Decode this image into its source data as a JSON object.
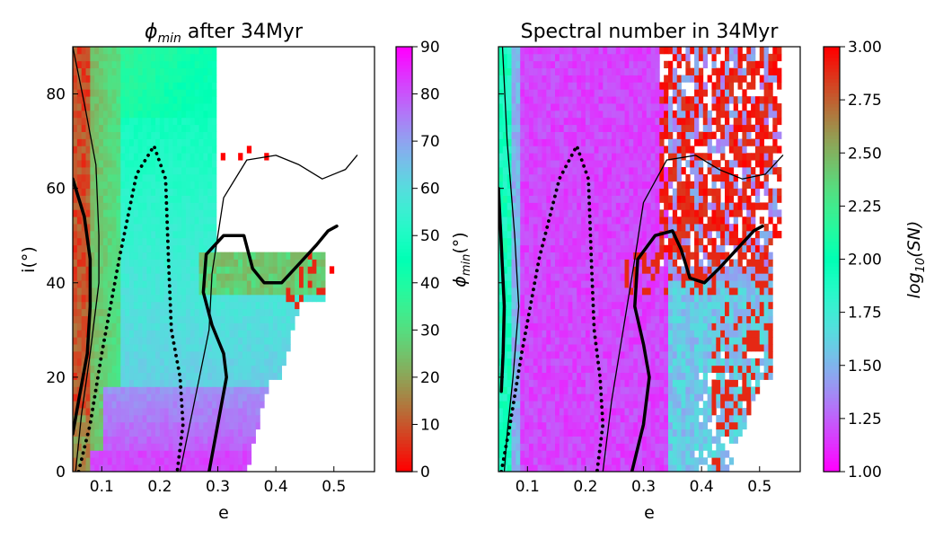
{
  "chart_data": [
    {
      "type": "heatmap",
      "title": "ϕmin after 34Myr",
      "title_main": "ϕ",
      "title_sub": "min",
      "title_rest": " after 34Myr",
      "xlabel": "e",
      "ylabel": "i(°)",
      "xlim": [
        0.05,
        0.57
      ],
      "ylim": [
        0,
        90
      ],
      "x_ticks": [
        "0.1",
        "0.2",
        "0.3",
        "0.4",
        "0.5"
      ],
      "x_tick_values": [
        0.1,
        0.2,
        0.3,
        0.4,
        0.5
      ],
      "y_ticks": [
        "0",
        "20",
        "40",
        "60",
        "80"
      ],
      "y_tick_values": [
        0,
        20,
        40,
        60,
        80
      ],
      "colorbar": {
        "label": "ϕmin(°)",
        "label_main": "ϕ",
        "label_sub": "min",
        "label_rest": "(°)",
        "range": [
          0,
          90
        ],
        "ticks": [
          "0",
          "10",
          "20",
          "30",
          "40",
          "50",
          "60",
          "70",
          "80",
          "90"
        ],
        "tick_values": [
          0,
          10,
          20,
          30,
          40,
          50,
          60,
          70,
          80,
          90
        ],
        "colormap": "rainbow_r",
        "low_color": "#ff0000",
        "high_color": "#8000ff"
      },
      "contours": [
        {
          "style": "solid-thick",
          "points": [
            [
              0.05,
              62
            ],
            [
              0.07,
              54
            ],
            [
              0.08,
              45
            ],
            [
              0.08,
              35
            ],
            [
              0.075,
              25
            ],
            [
              0.06,
              15
            ],
            [
              0.05,
              8
            ]
          ]
        },
        {
          "style": "solid-thin",
          "points": [
            [
              0.05,
              90
            ],
            [
              0.07,
              78
            ],
            [
              0.09,
              65
            ],
            [
              0.095,
              50
            ],
            [
              0.095,
              40
            ],
            [
              0.08,
              25
            ],
            [
              0.065,
              12
            ],
            [
              0.055,
              0
            ]
          ]
        },
        {
          "style": "dotted",
          "points": [
            [
              0.06,
              0
            ],
            [
              0.08,
              10
            ],
            [
              0.1,
              25
            ],
            [
              0.13,
              45
            ],
            [
              0.16,
              63
            ],
            [
              0.19,
              69
            ],
            [
              0.21,
              62
            ],
            [
              0.215,
              45
            ],
            [
              0.22,
              30
            ],
            [
              0.235,
              20
            ],
            [
              0.24,
              10
            ],
            [
              0.23,
              0
            ]
          ]
        },
        {
          "style": "solid-thin",
          "points": [
            [
              0.235,
              0
            ],
            [
              0.26,
              15
            ],
            [
              0.285,
              30
            ],
            [
              0.29,
              42
            ],
            [
              0.31,
              58
            ],
            [
              0.35,
              66
            ],
            [
              0.4,
              67
            ],
            [
              0.44,
              65
            ],
            [
              0.48,
              62
            ],
            [
              0.52,
              64
            ],
            [
              0.54,
              67
            ]
          ]
        },
        {
          "style": "solid-thick",
          "points": [
            [
              0.285,
              0
            ],
            [
              0.3,
              10
            ],
            [
              0.315,
              20
            ],
            [
              0.31,
              25
            ],
            [
              0.29,
              31
            ],
            [
              0.275,
              38
            ],
            [
              0.28,
              46
            ],
            [
              0.31,
              50
            ],
            [
              0.345,
              50
            ],
            [
              0.36,
              43
            ],
            [
              0.38,
              40
            ],
            [
              0.41,
              40
            ],
            [
              0.44,
              44
            ],
            [
              0.47,
              48
            ],
            [
              0.49,
              51
            ],
            [
              0.505,
              52
            ]
          ]
        }
      ]
    },
    {
      "type": "heatmap",
      "title": "Spectral number in 34Myr",
      "xlabel": "e",
      "ylabel": "",
      "xlim": [
        0.05,
        0.57
      ],
      "ylim": [
        0,
        90
      ],
      "x_ticks": [
        "0.1",
        "0.2",
        "0.3",
        "0.4",
        "0.5"
      ],
      "x_tick_values": [
        0.1,
        0.2,
        0.3,
        0.4,
        0.5
      ],
      "colorbar": {
        "label": "log10(SN)",
        "label_main": "log",
        "label_sub": "10",
        "label_rest": "(SN)",
        "range": [
          1.0,
          3.0
        ],
        "ticks": [
          "1.00",
          "1.25",
          "1.50",
          "1.75",
          "2.00",
          "2.25",
          "2.50",
          "2.75",
          "3.00"
        ],
        "tick_values": [
          1.0,
          1.25,
          1.5,
          1.75,
          2.0,
          2.25,
          2.5,
          2.75,
          3.0
        ],
        "colormap": "rainbow",
        "low_color": "#8000ff",
        "high_color": "#ff0000"
      },
      "contours": [
        {
          "style": "solid-thick",
          "points": [
            [
              0.05,
              60
            ],
            [
              0.055,
              48
            ],
            [
              0.06,
              35
            ],
            [
              0.058,
              25
            ],
            [
              0.055,
              17
            ]
          ]
        },
        {
          "style": "solid-thin",
          "points": [
            [
              0.057,
              90
            ],
            [
              0.065,
              70
            ],
            [
              0.078,
              50
            ],
            [
              0.085,
              35
            ],
            [
              0.075,
              20
            ],
            [
              0.065,
              8
            ],
            [
              0.06,
              0
            ]
          ]
        },
        {
          "style": "dotted",
          "points": [
            [
              0.055,
              0
            ],
            [
              0.07,
              10
            ],
            [
              0.09,
              25
            ],
            [
              0.12,
              45
            ],
            [
              0.155,
              62
            ],
            [
              0.185,
              69
            ],
            [
              0.205,
              62
            ],
            [
              0.21,
              45
            ],
            [
              0.215,
              30
            ],
            [
              0.225,
              20
            ],
            [
              0.23,
              10
            ],
            [
              0.22,
              0
            ]
          ]
        },
        {
          "style": "solid-thin",
          "points": [
            [
              0.23,
              0
            ],
            [
              0.245,
              15
            ],
            [
              0.265,
              30
            ],
            [
              0.285,
              45
            ],
            [
              0.3,
              57
            ],
            [
              0.34,
              66
            ],
            [
              0.39,
              67
            ],
            [
              0.43,
              64
            ],
            [
              0.47,
              62
            ],
            [
              0.51,
              63
            ],
            [
              0.54,
              67
            ]
          ]
        },
        {
          "style": "solid-thick",
          "points": [
            [
              0.28,
              0
            ],
            [
              0.3,
              10
            ],
            [
              0.31,
              20
            ],
            [
              0.3,
              27
            ],
            [
              0.285,
              35
            ],
            [
              0.29,
              45
            ],
            [
              0.32,
              50
            ],
            [
              0.35,
              51
            ],
            [
              0.365,
              47
            ],
            [
              0.38,
              41
            ],
            [
              0.405,
              40
            ],
            [
              0.43,
              43
            ],
            [
              0.46,
              47
            ],
            [
              0.49,
              51
            ],
            [
              0.505,
              52
            ]
          ]
        }
      ]
    }
  ]
}
